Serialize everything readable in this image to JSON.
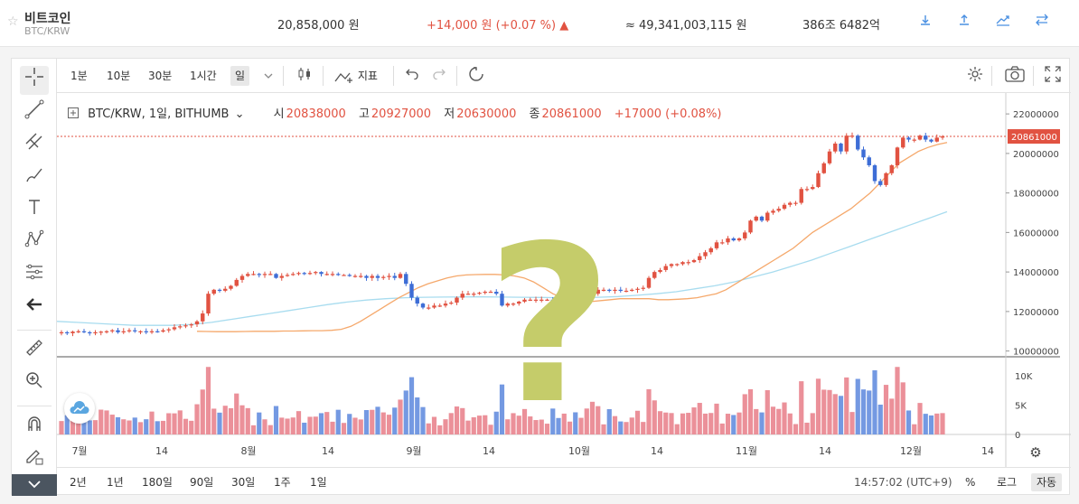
{
  "ticker": {
    "name": "비트코인",
    "pair": "BTC/KRW",
    "price": "20,858,000 원",
    "change": "+14,000 원 (+0.07 %) ▲",
    "volume": "≈ 49,341,003,115 원",
    "market_cap": "386조 6482억"
  },
  "toolbar": {
    "intervals": [
      "1분",
      "10분",
      "30분",
      "1시간",
      "일"
    ],
    "selected_interval": "일",
    "indicators_label": "지표"
  },
  "legend": {
    "symbol": "BTC/KRW, 1일, BITHUMB",
    "open_label": "시",
    "open": "20838000",
    "high_label": "고",
    "high": "20927000",
    "low_label": "저",
    "low": "20630000",
    "close_label": "종",
    "close": "20861000",
    "change": "+17000 (+0.08%)"
  },
  "bottom": {
    "ranges": [
      "2년",
      "1년",
      "180일",
      "90일",
      "30일",
      "1주",
      "1일"
    ],
    "time": "14:57:02 (UTC+9)",
    "percent": "%",
    "log": "로그",
    "auto": "자동"
  },
  "colors": {
    "up": "#e15241",
    "down": "#3d6dd6",
    "ma_short": "#f5a86b",
    "ma_long": "#a8dcef",
    "question": "#c5cc6a"
  },
  "chart_data": {
    "type": "candlestick",
    "title": "",
    "price_axis_ticks": [
      "22000000",
      "20000000",
      "18000000",
      "16000000",
      "14000000",
      "12000000",
      "10000000"
    ],
    "price_axis_range": [
      9800000,
      22600000
    ],
    "volume_axis_ticks": [
      "10K",
      "5K",
      "0"
    ],
    "volume_axis_range": [
      0,
      12000
    ],
    "x_ticks": [
      "7월",
      "14",
      "8월",
      "14",
      "9월",
      "14",
      "10월",
      "14",
      "11월",
      "14",
      "12월",
      "14"
    ],
    "last_price_label": "20861000",
    "close_series": [
      10950000,
      10900000,
      10980000,
      11000000,
      10950000,
      10900000,
      10950000,
      10980000,
      11000000,
      11050000,
      10950000,
      11000000,
      11050000,
      11000000,
      11000000,
      10950000,
      11000000,
      10980000,
      11050000,
      11100000,
      11200000,
      11250000,
      11300000,
      11350000,
      11500000,
      11900000,
      12900000,
      13100000,
      13050000,
      13150000,
      13300000,
      13600000,
      13800000,
      13900000,
      13900000,
      13850000,
      13900000,
      13900000,
      13700000,
      13800000,
      13850000,
      13900000,
      13950000,
      13900000,
      13950000,
      14000000,
      13900000,
      13900000,
      13900000,
      13850000,
      13850000,
      13800000,
      13800000,
      13800000,
      13700000,
      13800000,
      13700000,
      13750000,
      13800000,
      13700000,
      13900000,
      13400000,
      12700000,
      12400000,
      12200000,
      12200000,
      12300000,
      12300000,
      12400000,
      12450000,
      12700000,
      12900000,
      12900000,
      12900000,
      12950000,
      13000000,
      13000000,
      12900000,
      12300000,
      12400000,
      12400000,
      12500000,
      12600000,
      12600000,
      12600000,
      12600000,
      12600000,
      12550000,
      12500000,
      12550000,
      12550000,
      12500000,
      12550000,
      12700000,
      12900000,
      13100000,
      13100000,
      13050000,
      13100000,
      13050000,
      13050000,
      13100000,
      13150000,
      13200000,
      13700000,
      14000000,
      14100000,
      14300000,
      14400000,
      14400000,
      14500000,
      14500000,
      14600000,
      14800000,
      15000000,
      15200000,
      15500000,
      15500000,
      15700000,
      15600000,
      15700000,
      16000000,
      16600000,
      16800000,
      16600000,
      17000000,
      17100000,
      17200000,
      17400000,
      17500000,
      17500000,
      18200000,
      18200000,
      18300000,
      19000000,
      19500000,
      20100000,
      20500000,
      20100000,
      20900000,
      20900000,
      20200000,
      19800000,
      19400000,
      18600000,
      18400000,
      19000000,
      19400000,
      20300000,
      20800000,
      20700000,
      20700000,
      20900000,
      20700000,
      20600000,
      20800000,
      20861000
    ],
    "ma_short_series": [
      11000000,
      10990000,
      10980000,
      10980000,
      10980000,
      10990000,
      11000000,
      11000000,
      11000000,
      11010000,
      11010000,
      11020000,
      11030000,
      11030000,
      11050000,
      11100000,
      11250000,
      11500000,
      11800000,
      12100000,
      12400000,
      12700000,
      12950000,
      13200000,
      13400000,
      13550000,
      13700000,
      13800000,
      13850000,
      13870000,
      13880000,
      13880000,
      13850000,
      13800000,
      13700000,
      13500000,
      13200000,
      12900000,
      12700000,
      12600000,
      12500000,
      12500000,
      12550000,
      12600000,
      12650000,
      12650000,
      12650000,
      12650000,
      12600000,
      12600000,
      12620000,
      12650000,
      12700000,
      12800000,
      12900000,
      13100000,
      13400000,
      13700000,
      14000000,
      14300000,
      14600000,
      14900000,
      15200000,
      15600000,
      16000000,
      16300000,
      16600000,
      16900000,
      17200000,
      17600000,
      18000000,
      18500000,
      19000000,
      19500000,
      19800000,
      20100000,
      20300000,
      20450000,
      20550000
    ],
    "ma_long_series": [
      11500000,
      11450000,
      11400000,
      11350000,
      11300000,
      11300000,
      11300000,
      11350000,
      11450000,
      11600000,
      11750000,
      11900000,
      12050000,
      12200000,
      12350000,
      12480000,
      12580000,
      12650000,
      12700000,
      12720000,
      12730000,
      12740000,
      12740000,
      12730000,
      12720000,
      12710000,
      12700000,
      12700000,
      12720000,
      12760000,
      12820000,
      12900000,
      13000000,
      13150000,
      13300000,
      13500000,
      13750000,
      14000000,
      14300000,
      14600000,
      14950000,
      15300000,
      15650000,
      16000000,
      16350000,
      16700000,
      17050000
    ]
  }
}
